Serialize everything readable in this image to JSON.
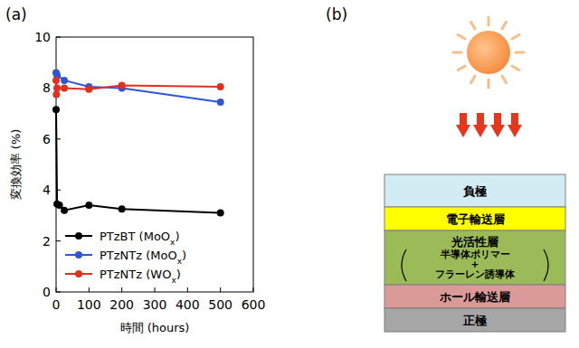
{
  "chart_data": {
    "type": "line",
    "title": "(a)",
    "x_label": "時間 (hours)",
    "y_label": "変換効率 (%)",
    "xlim": [
      0,
      600
    ],
    "xticks": [
      0,
      100,
      200,
      300,
      400,
      500,
      600
    ],
    "ylim": [
      0,
      10
    ],
    "yticks": [
      0,
      2,
      4,
      6,
      8,
      10
    ],
    "legend": "lower left",
    "marker": "circle",
    "series": [
      {
        "name": "PTzBT (MoOx)",
        "color": "#000000",
        "x": [
          0,
          3,
          10,
          25,
          100,
          200,
          500
        ],
        "values": [
          7.15,
          3.45,
          3.4,
          3.2,
          3.4,
          3.25,
          3.1
        ]
      },
      {
        "name": "PTzNTz (MoOx)",
        "color": "#2f55d4",
        "x": [
          0,
          3,
          25,
          100,
          200,
          500
        ],
        "values": [
          8.6,
          8.5,
          8.3,
          8.05,
          8.0,
          7.45
        ]
      },
      {
        "name": "PTzNTz (WOx)",
        "color": "#e0301e",
        "x": [
          0,
          1,
          3,
          25,
          100,
          200,
          500
        ],
        "values": [
          8.3,
          7.75,
          8.0,
          8.0,
          7.95,
          8.1,
          8.05
        ]
      }
    ]
  },
  "diagram": {
    "title": "(b)",
    "layers": [
      {
        "label": "負極",
        "color": "#d3ebf3"
      },
      {
        "label": "電子輸送層",
        "color": "#ffff00"
      },
      {
        "label": "光活性層",
        "color": "#9bbb59",
        "components": [
          "半導体ポリマー",
          "+",
          "フラーレン誘導体"
        ]
      },
      {
        "label": "ホール輸送層",
        "color": "#d99a98"
      },
      {
        "label": "正極",
        "color": "#a6a6a6"
      }
    ]
  }
}
